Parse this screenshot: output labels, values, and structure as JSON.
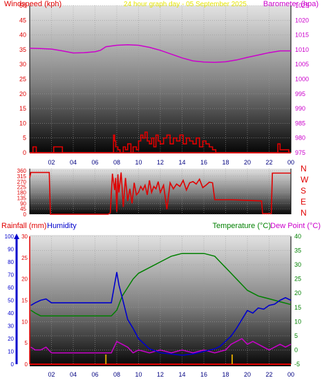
{
  "header": {
    "left": "Windspeed (kph)",
    "center": "24 hour graph day - 05 September 2025",
    "right": "Barometer (hpa)"
  },
  "colors": {
    "wind": "#e00000",
    "baro": "#cc00cc",
    "rain": "#e00000",
    "humidity": "#0000cc",
    "temp": "#008000",
    "dew": "#cc00cc",
    "rainbar": "#d4a000",
    "center_title": "#e6e600"
  },
  "x_ticks": [
    "02",
    "04",
    "06",
    "08",
    "10",
    "12",
    "14",
    "16",
    "18",
    "20",
    "22",
    "00"
  ],
  "direction_labels": [
    "N",
    "W",
    "S",
    "E",
    "N"
  ],
  "bottom_labels": {
    "rain": "Rainfall (mm)",
    "humidity": "Humidity",
    "temp": "Temperature (°C)",
    "dew": "Dew Point (°C)"
  },
  "chart_data": [
    {
      "type": "line",
      "id": "wind_baro",
      "x_ticks": [
        "02",
        "04",
        "06",
        "08",
        "10",
        "12",
        "14",
        "16",
        "18",
        "20",
        "22",
        "00"
      ],
      "left_axis": {
        "label": "Windspeed (kph)",
        "ylim": [
          0,
          50
        ],
        "ticks": [
          0,
          5,
          10,
          15,
          20,
          25,
          30,
          35,
          40,
          45,
          50
        ]
      },
      "right_axis": {
        "label": "Barometer (hpa)",
        "ylim": [
          975,
          1025
        ],
        "ticks": [
          975,
          980,
          985,
          990,
          995,
          1000,
          1005,
          1010,
          1015,
          1020,
          1025
        ]
      },
      "series": [
        {
          "name": "Barometer (hpa)",
          "axis": "right",
          "x": [
            0,
            1,
            2,
            3,
            4,
            5,
            6,
            6.5,
            7,
            8,
            9,
            10,
            11,
            12,
            13,
            14,
            15,
            16,
            17,
            18,
            19,
            20,
            21,
            22,
            23,
            24
          ],
          "y": [
            1010.5,
            1010.4,
            1010.2,
            1009.6,
            1008.9,
            1009.0,
            1009.3,
            1009.8,
            1011.0,
            1011.5,
            1011.7,
            1011.5,
            1010.8,
            1009.8,
            1008.5,
            1007.2,
            1006.2,
            1005.8,
            1005.7,
            1005.9,
            1006.5,
            1007.4,
            1008.2,
            1009.0,
            1009.6,
            1009.6
          ]
        },
        {
          "name": "Windspeed (kph)",
          "axis": "left",
          "x": [
            0.05,
            0.3,
            0.6,
            1.0,
            1.4,
            1.9,
            2.2,
            3.0,
            4.5,
            6.0,
            7.7,
            7.8,
            7.9,
            8.1,
            8.3,
            8.6,
            8.8,
            9.0,
            9.3,
            9.5,
            9.8,
            10.0,
            10.2,
            10.4,
            10.6,
            10.8,
            11.0,
            11.2,
            11.4,
            11.6,
            11.8,
            12.0,
            12.3,
            12.6,
            12.9,
            13.2,
            13.5,
            13.8,
            14.1,
            14.4,
            14.7,
            15.0,
            15.3,
            15.6,
            15.9,
            16.2,
            16.5,
            16.8,
            17.1,
            17.5,
            18.5,
            20.0,
            21.5,
            22.5,
            22.8,
            23.0,
            23.8
          ],
          "y": [
            0,
            2,
            0,
            0,
            0,
            0,
            2,
            0,
            0,
            0,
            6,
            4,
            2,
            1,
            0,
            2,
            1,
            3,
            0,
            2,
            1,
            4,
            6,
            5,
            7,
            4,
            3,
            5,
            2,
            6,
            4,
            3,
            5,
            6,
            3,
            5,
            4,
            6,
            3,
            5,
            4,
            3,
            5,
            2,
            4,
            3,
            2,
            1,
            0,
            0,
            0,
            0,
            0,
            0,
            3,
            1,
            0
          ]
        }
      ]
    },
    {
      "type": "line",
      "id": "wind_direction",
      "x_ticks": [
        "02",
        "04",
        "06",
        "08",
        "10",
        "12",
        "14",
        "16",
        "18",
        "20",
        "22",
        "00"
      ],
      "left_axis": {
        "ylim": [
          0,
          360
        ],
        "ticks": [
          0,
          45,
          90,
          135,
          180,
          225,
          270,
          315,
          360
        ]
      },
      "right_labels": [
        "N",
        "W",
        "S",
        "E",
        "N"
      ],
      "series": [
        {
          "name": "Wind direction",
          "x": [
            0.0,
            0.1,
            1.8,
            1.9,
            7.2,
            7.4,
            7.6,
            7.8,
            7.9,
            8.0,
            8.1,
            8.2,
            8.4,
            8.6,
            8.8,
            9.0,
            9.2,
            9.4,
            9.6,
            9.8,
            10.0,
            10.2,
            10.4,
            10.6,
            10.8,
            11.0,
            11.2,
            11.4,
            11.6,
            11.8,
            12.0,
            12.3,
            12.6,
            12.9,
            13.2,
            13.5,
            13.8,
            14.1,
            14.4,
            14.7,
            15.0,
            15.3,
            15.6,
            15.9,
            16.2,
            16.5,
            16.8,
            17.0,
            18.5,
            20.0,
            21.3,
            21.4,
            21.8,
            22.2,
            22.3,
            24.0
          ],
          "y": [
            300,
            345,
            345,
            0,
            0,
            10,
            335,
            200,
            300,
            20,
            330,
            180,
            345,
            60,
            300,
            110,
            210,
            90,
            260,
            160,
            180,
            230,
            200,
            240,
            160,
            280,
            180,
            230,
            210,
            270,
            180,
            240,
            40,
            260,
            210,
            250,
            230,
            280,
            200,
            260,
            270,
            250,
            290,
            220,
            240,
            265,
            260,
            120,
            120,
            115,
            110,
            5,
            5,
            5,
            340,
            340
          ]
        }
      ]
    },
    {
      "type": "line",
      "id": "rain_humidity_temp",
      "x_ticks": [
        "02",
        "04",
        "06",
        "08",
        "10",
        "12",
        "14",
        "16",
        "18",
        "20",
        "22",
        "00"
      ],
      "left_axis_humidity": {
        "label": "Humidity",
        "ylim": [
          0,
          100
        ],
        "ticks": [
          0,
          10,
          20,
          30,
          40,
          50,
          60,
          70,
          80,
          90,
          100
        ]
      },
      "left_axis_rain": {
        "label": "Rainfall (mm)",
        "ylim": [
          0,
          30
        ],
        "ticks": [
          0,
          5,
          10,
          15,
          20,
          25,
          30
        ]
      },
      "right_axis_temp": {
        "label": "Temperature (°C)",
        "ylim": [
          -5,
          40
        ],
        "ticks": [
          -5,
          0,
          5,
          10,
          15,
          20,
          25,
          30,
          35,
          40
        ]
      },
      "series": [
        {
          "name": "Humidity",
          "axis": "humidity",
          "x": [
            0.1,
            0.5,
            1.0,
            1.5,
            2.0,
            3.0,
            4.0,
            5.0,
            6.0,
            7.0,
            7.5,
            8.0,
            8.2,
            8.5,
            9.0,
            9.5,
            10.0,
            11.0,
            12.0,
            13.0,
            14.0,
            15.0,
            16.0,
            17.0,
            17.5,
            18.0,
            18.5,
            19.0,
            19.5,
            20.0,
            20.5,
            21.0,
            21.5,
            22.0,
            22.5,
            23.0,
            23.5,
            24.0
          ],
          "y": [
            46,
            48,
            50,
            51,
            48,
            48,
            48,
            48,
            48,
            48,
            48,
            72,
            62,
            52,
            35,
            28,
            20,
            12,
            9,
            8,
            7,
            8,
            10,
            12,
            14,
            18,
            22,
            28,
            35,
            42,
            40,
            44,
            43,
            46,
            47,
            50,
            52,
            50
          ]
        },
        {
          "name": "Temperature (°C)",
          "axis": "temp",
          "x": [
            0.1,
            0.5,
            1.0,
            2.0,
            3.0,
            4.0,
            5.0,
            6.0,
            7.0,
            7.5,
            8.0,
            8.5,
            9.0,
            9.5,
            10.0,
            11.0,
            12.0,
            13.0,
            14.0,
            15.0,
            16.0,
            17.0,
            17.5,
            18.0,
            18.5,
            19.0,
            19.5,
            20.0,
            21.0,
            22.0,
            23.0,
            24.0
          ],
          "y": [
            14,
            13,
            12,
            12,
            12,
            12,
            12,
            12,
            12,
            12,
            14,
            19,
            22,
            25,
            27,
            29,
            31,
            33,
            34,
            34,
            34,
            33,
            31,
            29,
            27,
            25,
            23,
            21,
            19,
            18,
            17,
            16
          ]
        },
        {
          "name": "Dew Point (°C)",
          "axis": "temp",
          "x": [
            0.1,
            0.5,
            1.0,
            1.5,
            2.0,
            3.0,
            4.0,
            5.0,
            6.0,
            7.0,
            7.5,
            8.0,
            8.5,
            9.0,
            9.5,
            10.0,
            11.0,
            12.0,
            13.0,
            14.0,
            15.0,
            16.0,
            17.0,
            18.0,
            18.5,
            19.0,
            19.5,
            20.0,
            20.5,
            21.0,
            21.5,
            22.0,
            22.5,
            23.0,
            23.5,
            24.0
          ],
          "y": [
            1,
            0,
            0,
            1,
            -1,
            -1,
            -1,
            -1,
            -1,
            -1,
            -1,
            3,
            2,
            1,
            -1,
            0,
            -1,
            0,
            -1,
            0,
            -1,
            0,
            -1,
            0,
            2,
            3,
            4,
            2,
            3,
            2,
            1,
            0,
            1,
            2,
            1,
            2
          ]
        },
        {
          "name": "Rainfall (mm)",
          "axis": "rain",
          "x": [
            0,
            24
          ],
          "y": [
            0,
            0
          ]
        }
      ],
      "rain_markers": [
        7.0,
        18.6
      ]
    }
  ]
}
